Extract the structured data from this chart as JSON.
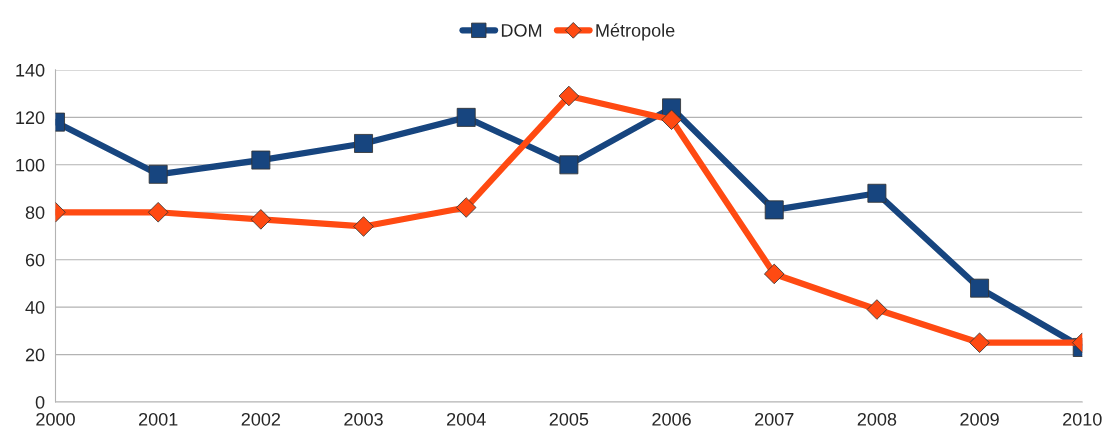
{
  "chart_data": {
    "type": "line",
    "x": [
      2000,
      2001,
      2002,
      2003,
      2004,
      2005,
      2006,
      2007,
      2008,
      2009,
      2010
    ],
    "series": [
      {
        "name": "DOM",
        "color": "#17457f",
        "marker": "square",
        "values": [
          118,
          96,
          102,
          109,
          120,
          100,
          124,
          81,
          88,
          48,
          23
        ]
      },
      {
        "name": "Métropole",
        "color": "#ff4a12",
        "marker": "diamond",
        "values": [
          80,
          80,
          77,
          74,
          82,
          129,
          119,
          54,
          39,
          25,
          25
        ]
      }
    ],
    "xlim": [
      2000,
      2010
    ],
    "xticks": [
      2000,
      2001,
      2002,
      2003,
      2004,
      2005,
      2006,
      2007,
      2008,
      2009,
      2010
    ],
    "ylim": [
      0,
      140
    ],
    "yticks": [
      0,
      20,
      40,
      60,
      80,
      100,
      120,
      140
    ],
    "grid": "y",
    "legend": "top",
    "line_style": "solid"
  }
}
